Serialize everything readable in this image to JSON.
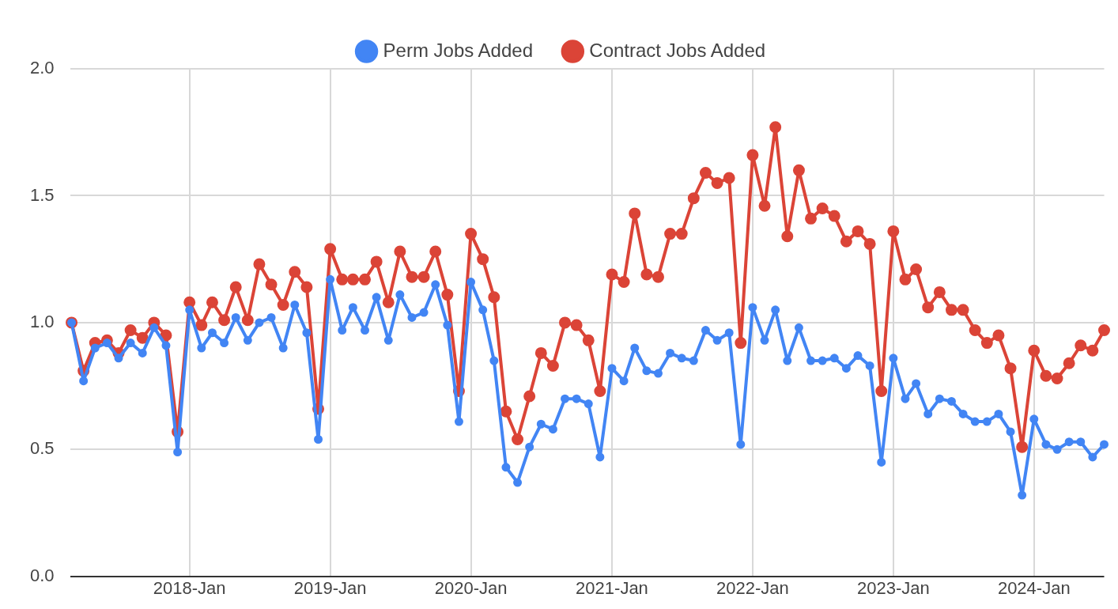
{
  "chart_data": {
    "type": "line",
    "legend": "top",
    "grid": true,
    "marker": "circle",
    "line_style": "solid",
    "x": [
      "2017-03",
      "2017-04",
      "2017-05",
      "2017-06",
      "2017-07",
      "2017-08",
      "2017-09",
      "2017-10",
      "2017-11",
      "2017-12",
      "2018-01",
      "2018-02",
      "2018-03",
      "2018-04",
      "2018-05",
      "2018-06",
      "2018-07",
      "2018-08",
      "2018-09",
      "2018-10",
      "2018-11",
      "2018-12",
      "2019-01",
      "2019-02",
      "2019-03",
      "2019-04",
      "2019-05",
      "2019-06",
      "2019-07",
      "2019-08",
      "2019-09",
      "2019-10",
      "2019-11",
      "2019-12",
      "2020-01",
      "2020-02",
      "2020-03",
      "2020-04",
      "2020-05",
      "2020-06",
      "2020-07",
      "2020-08",
      "2020-09",
      "2020-10",
      "2020-11",
      "2020-12",
      "2021-01",
      "2021-02",
      "2021-03",
      "2021-04",
      "2021-05",
      "2021-06",
      "2021-07",
      "2021-08",
      "2021-09",
      "2021-10",
      "2021-11",
      "2021-12",
      "2022-01",
      "2022-02",
      "2022-03",
      "2022-04",
      "2022-05",
      "2022-06",
      "2022-07",
      "2022-08",
      "2022-09",
      "2022-10",
      "2022-11",
      "2022-12",
      "2023-01",
      "2023-02",
      "2023-03",
      "2023-04",
      "2023-05",
      "2023-06",
      "2023-07",
      "2023-08",
      "2023-09",
      "2023-10",
      "2023-11",
      "2023-12",
      "2024-01",
      "2024-02",
      "2024-03",
      "2024-04",
      "2024-05",
      "2024-06",
      "2024-07"
    ],
    "xlim": [
      "2017-02-25",
      "2024-07-01"
    ],
    "xticks": [
      {
        "value": "2018-01",
        "label": "2018-Jan"
      },
      {
        "value": "2019-01",
        "label": "2019-Jan"
      },
      {
        "value": "2020-01",
        "label": "2020-Jan"
      },
      {
        "value": "2021-01",
        "label": "2021-Jan"
      },
      {
        "value": "2022-01",
        "label": "2022-Jan"
      },
      {
        "value": "2023-01",
        "label": "2023-Jan"
      },
      {
        "value": "2024-01",
        "label": "2024-Jan"
      }
    ],
    "ylim": [
      0,
      2
    ],
    "yticks": [
      {
        "value": 0,
        "label": "0.0"
      },
      0.5,
      {
        "value": 1,
        "label": "1.0"
      },
      1.5,
      {
        "value": 2,
        "label": "2.0"
      }
    ],
    "series": [
      {
        "name": "Perm Jobs Added",
        "color": "#4285f4",
        "values": [
          1.0,
          0.77,
          0.9,
          0.92,
          0.86,
          0.92,
          0.88,
          0.98,
          0.91,
          0.49,
          1.05,
          0.9,
          0.96,
          0.92,
          1.02,
          0.93,
          1.0,
          1.02,
          0.9,
          1.07,
          0.96,
          0.54,
          1.17,
          0.97,
          1.06,
          0.97,
          1.1,
          0.93,
          1.11,
          1.02,
          1.04,
          1.15,
          0.99,
          0.61,
          1.16,
          1.05,
          0.85,
          0.43,
          0.37,
          0.51,
          0.6,
          0.58,
          0.7,
          0.7,
          0.68,
          0.47,
          0.82,
          0.77,
          0.9,
          0.81,
          0.8,
          0.88,
          0.86,
          0.85,
          0.97,
          0.93,
          0.96,
          0.52,
          1.06,
          0.93,
          1.05,
          0.85,
          0.98,
          0.85,
          0.85,
          0.86,
          0.82,
          0.87,
          0.83,
          0.45,
          0.86,
          0.7,
          0.76,
          0.64,
          0.7,
          0.69,
          0.64,
          0.61,
          0.61,
          0.64,
          0.57,
          0.32,
          0.62,
          0.52,
          0.5,
          0.53,
          0.53,
          0.47,
          0.52
        ]
      },
      {
        "name": "Contract Jobs Added",
        "color": "#db4437",
        "values": [
          1.0,
          0.81,
          0.92,
          0.93,
          0.88,
          0.97,
          0.94,
          1.0,
          0.95,
          0.57,
          1.08,
          0.99,
          1.08,
          1.01,
          1.14,
          1.01,
          1.23,
          1.15,
          1.07,
          1.2,
          1.14,
          0.66,
          1.29,
          1.17,
          1.17,
          1.17,
          1.24,
          1.08,
          1.28,
          1.18,
          1.18,
          1.28,
          1.11,
          0.73,
          1.35,
          1.25,
          1.1,
          0.65,
          0.54,
          0.71,
          0.88,
          0.83,
          1.0,
          0.99,
          0.93,
          0.73,
          1.19,
          1.16,
          1.43,
          1.19,
          1.18,
          1.35,
          1.35,
          1.49,
          1.59,
          1.55,
          1.57,
          0.92,
          1.66,
          1.46,
          1.77,
          1.34,
          1.6,
          1.41,
          1.45,
          1.42,
          1.32,
          1.36,
          1.31,
          0.73,
          1.36,
          1.17,
          1.21,
          1.06,
          1.12,
          1.05,
          1.05,
          0.97,
          0.92,
          0.95,
          0.82,
          0.51,
          0.89,
          0.79,
          0.78,
          0.84,
          0.91,
          0.89,
          0.97
        ]
      }
    ]
  }
}
